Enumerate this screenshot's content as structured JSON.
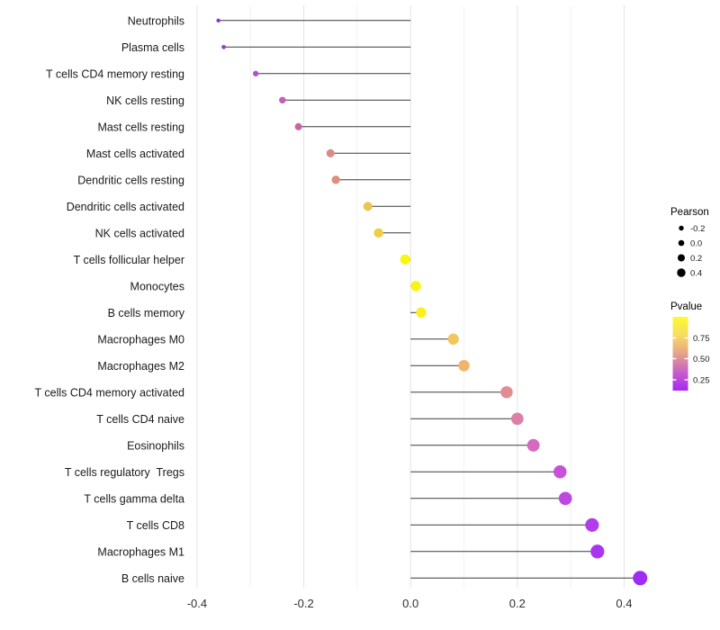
{
  "chart_data": {
    "type": "scatter",
    "subtype": "lollipop",
    "title": "",
    "xlabel": "",
    "ylabel": "",
    "xlim": [
      -0.415,
      0.47
    ],
    "x_major_ticks": [
      -0.4,
      -0.2,
      0.0,
      0.2,
      0.4
    ],
    "x_tick_labels": [
      "-0.4",
      "-0.2",
      "0.0",
      "0.2",
      "0.4"
    ],
    "x_minor_ticks": [
      -0.3,
      -0.1,
      0.1,
      0.3
    ],
    "grid": "major+minor vertical, no panel border, white background",
    "legend_position": "right",
    "baseline_x": 0,
    "categories": [
      "Neutrophils",
      "Plasma cells",
      "T cells CD4 memory resting",
      "NK cells resting",
      "Mast cells resting",
      "Mast cells activated",
      "Dendritic cells resting",
      "Dendritic cells activated",
      "NK cells activated",
      "T cells follicular helper",
      "Monocytes",
      "B cells memory",
      "Macrophages M0",
      "Macrophages M2",
      "T cells CD4 memory activated",
      "T cells CD4 naive",
      "Eosinophils",
      "T cells regulatory  Tregs",
      "T cells gamma delta",
      "T cells CD8",
      "Macrophages M1",
      "B cells naive"
    ],
    "series": [
      {
        "name": "Pearson",
        "values": [
          -0.36,
          -0.35,
          -0.29,
          -0.24,
          -0.21,
          -0.15,
          -0.14,
          -0.08,
          -0.06,
          -0.01,
          0.01,
          0.02,
          0.08,
          0.1,
          0.18,
          0.2,
          0.23,
          0.28,
          0.29,
          0.34,
          0.35,
          0.43
        ]
      }
    ],
    "point_colors": [
      "#9031E6",
      "#9A35DC",
      "#B351CB",
      "#C260B3",
      "#C965A7",
      "#DB8A85",
      "#DC9178",
      "#EDC553",
      "#EFCF42",
      "#FBF60D",
      "#FAF413",
      "#F9F11B",
      "#F2C55E",
      "#F0B56A",
      "#E28B93",
      "#DD80A7",
      "#D56AC0",
      "#C751D7",
      "#BE49E0",
      "#B33DEA",
      "#AA35F0",
      "#9D2CF4"
    ],
    "legends": {
      "size": {
        "title": "Pearson",
        "dot_color": "#000000",
        "entries": [
          {
            "label": "-0.2",
            "radius": 2.7
          },
          {
            "label": "0.0",
            "radius": 3.3
          },
          {
            "label": "0.2",
            "radius": 4.0
          },
          {
            "label": "0.4",
            "radius": 4.7
          }
        ]
      },
      "color": {
        "title": "Pvalue",
        "tick_labels": [
          "0.75",
          "0.50",
          "0.25"
        ],
        "gradient_top_to_bottom": [
          "#FDFB30",
          "#F6DC64",
          "#E6A289",
          "#C75FC8",
          "#A626F3"
        ]
      }
    },
    "styles": {
      "stem_color": "#3a3a3a",
      "grid_major": "#e4e4e4",
      "grid_minor": "#f2f2f2",
      "axis_text": "#303030",
      "background": "#ffffff"
    }
  }
}
